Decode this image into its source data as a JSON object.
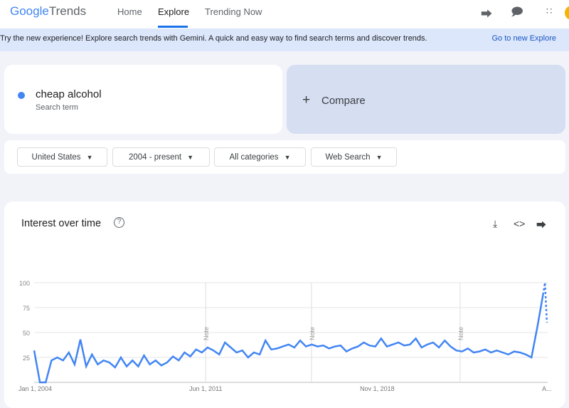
{
  "header": {
    "logo_google": "Google",
    "logo_trends": "Trends",
    "nav": [
      "Home",
      "Explore",
      "Trending Now"
    ],
    "icons": [
      "share-icon",
      "feedback-icon",
      "apps-icon"
    ]
  },
  "banner": {
    "text": "Try the new experience! Explore search trends with Gemini. A quick and easy way to find search terms and discover trends.",
    "link": "Go to new Explore"
  },
  "search": {
    "term": "cheap alcohol",
    "term_type": "Search term",
    "compare_label": "Compare",
    "color": "#4285f4"
  },
  "filters": [
    "United States",
    "2004 - present",
    "All categories",
    "Web Search"
  ],
  "chart_card": {
    "title": "Interest over time",
    "icons": [
      "download-icon",
      "embed-icon",
      "share-icon"
    ]
  },
  "chart_data": {
    "type": "line",
    "ylim": [
      0,
      100
    ],
    "yticks": [
      25,
      50,
      75,
      100
    ],
    "xtick_labels": [
      "Jan 1, 2004",
      "Jun 1, 2011",
      "Nov 1, 2018",
      "A..."
    ],
    "notes": [
      "Note",
      "Note",
      "Note"
    ],
    "grid": true,
    "series": [
      {
        "color": "#4285f4",
        "x": [
          "2004-01",
          "2004-04",
          "2004-07",
          "2004-10",
          "2005-01",
          "2005-04",
          "2005-07",
          "2005-10",
          "2006-01",
          "2006-04",
          "2006-07",
          "2006-10",
          "2007-01",
          "2007-04",
          "2007-07",
          "2007-10",
          "2008-01",
          "2008-04",
          "2008-07",
          "2008-10",
          "2009-01",
          "2009-04",
          "2009-07",
          "2009-10",
          "2010-01",
          "2010-04",
          "2010-07",
          "2010-10",
          "2011-01",
          "2011-04",
          "2011-07",
          "2011-10",
          "2012-01",
          "2012-04",
          "2012-07",
          "2012-10",
          "2013-01",
          "2013-04",
          "2013-07",
          "2013-10",
          "2014-01",
          "2014-04",
          "2014-07",
          "2014-10",
          "2015-01",
          "2015-04",
          "2015-07",
          "2015-10",
          "2016-01",
          "2016-04",
          "2016-07",
          "2016-10",
          "2017-01",
          "2017-04",
          "2017-07",
          "2017-10",
          "2018-01",
          "2018-04",
          "2018-07",
          "2018-10",
          "2019-01",
          "2019-04",
          "2019-07",
          "2019-10",
          "2020-01",
          "2020-04",
          "2020-07",
          "2020-10",
          "2021-01",
          "2021-04",
          "2021-07",
          "2021-10",
          "2022-01",
          "2022-04",
          "2022-07",
          "2022-10",
          "2023-01",
          "2023-04",
          "2023-07",
          "2023-10",
          "2024-01",
          "2024-04",
          "2024-07",
          "2024-10",
          "2025-01",
          "2025-04",
          "2025-07",
          "2025-10",
          "2026-01"
        ],
        "values": [
          32,
          0,
          0,
          22,
          25,
          22,
          30,
          18,
          43,
          16,
          28,
          18,
          22,
          20,
          15,
          25,
          16,
          22,
          16,
          27,
          18,
          22,
          17,
          20,
          26,
          22,
          30,
          26,
          33,
          30,
          35,
          32,
          28,
          40,
          35,
          30,
          32,
          25,
          30,
          28,
          42,
          33,
          34,
          36,
          38,
          35,
          42,
          36,
          38,
          36,
          37,
          34,
          36,
          37,
          31,
          34,
          36,
          40,
          37,
          36,
          44,
          36,
          38,
          40,
          37,
          38,
          44,
          35,
          38,
          40,
          35,
          42,
          36,
          32,
          31,
          34,
          30,
          31,
          33,
          30,
          32,
          30,
          28,
          31,
          30,
          28,
          25,
          55,
          88
        ],
        "partial": {
          "x": [
            "2026-01",
            "2026-02",
            "2026-03"
          ],
          "values": [
            88,
            100,
            60
          ]
        }
      }
    ]
  }
}
